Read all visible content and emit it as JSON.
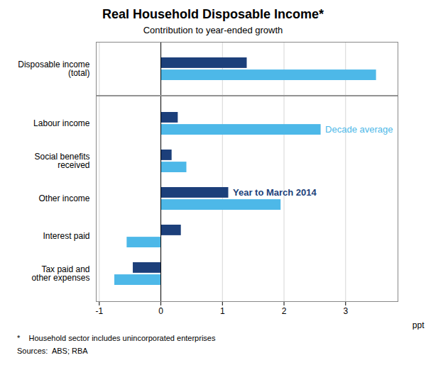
{
  "chart_data": [
    {
      "type": "bar",
      "orientation": "horizontal",
      "title": "Real Household Disposable Income*",
      "subtitle": "Contribution to year-ended growth",
      "categories": [
        "Disposable income\n(total)"
      ],
      "series": [
        {
          "color": "#1c3f7a",
          "values": [
            1.4
          ]
        },
        {
          "color": "#4db8e8",
          "values": [
            3.5
          ]
        }
      ],
      "xlim": [
        -1.05,
        3.85
      ],
      "xticks": [
        -1,
        0,
        1,
        2,
        3
      ],
      "grid": true,
      "tick_labels": "y"
    },
    {
      "type": "bar",
      "orientation": "horizontal",
      "categories": [
        "Labour income",
        "Social benefits\nreceived",
        "Other income",
        "Interest paid",
        "Tax paid and\nother expenses"
      ],
      "series": [
        {
          "name": "Year to March 2014",
          "color": "#1c3f7a",
          "values": [
            0.28,
            0.18,
            1.1,
            0.33,
            -0.45
          ]
        },
        {
          "name": "Decade average",
          "color": "#4db8e8",
          "values": [
            2.6,
            0.42,
            1.95,
            -0.55,
            -0.75
          ]
        }
      ],
      "xlim": [
        -1.05,
        3.85
      ],
      "xticks": [
        -1,
        0,
        1,
        2,
        3
      ],
      "xlabel": "ppt",
      "grid": true,
      "footnote": "*    Household sector includes unincorporated enterprises",
      "sources": "Sources:  ABS; RBA"
    }
  ]
}
